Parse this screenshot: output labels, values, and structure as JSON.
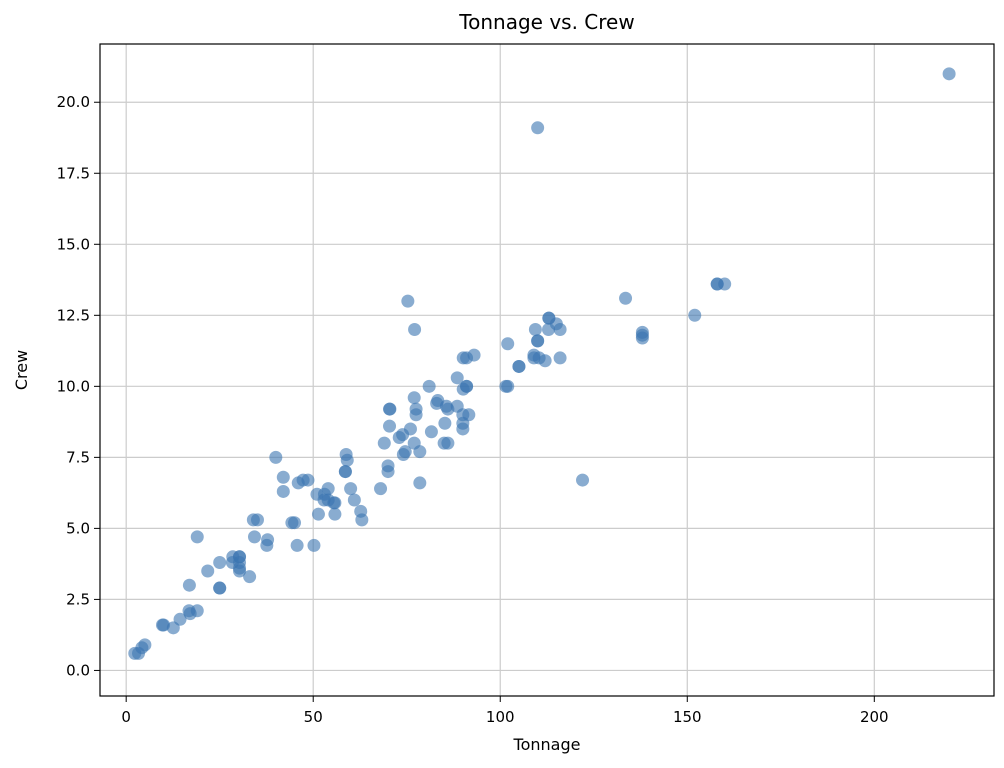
{
  "chart_data": {
    "type": "scatter",
    "title": "Tonnage vs. Crew",
    "xlabel": "Tonnage",
    "ylabel": "Crew",
    "xlim": [
      -7,
      232
    ],
    "ylim": [
      -0.9,
      22.05
    ],
    "xticks": [
      0,
      50,
      100,
      150,
      200
    ],
    "yticks": [
      0.0,
      2.5,
      5.0,
      7.5,
      10.0,
      12.5,
      15.0,
      17.5,
      20.0
    ],
    "ytick_labels": [
      "0.0",
      "2.5",
      "5.0",
      "7.5",
      "10.0",
      "12.5",
      "15.0",
      "17.5",
      "20.0"
    ],
    "grid": true,
    "point_color": "#3a75b0",
    "point_opacity": 0.6,
    "points": [
      [
        2.3,
        0.6
      ],
      [
        3.3,
        0.6
      ],
      [
        4.2,
        0.8
      ],
      [
        5.0,
        0.9
      ],
      [
        9.7,
        1.6
      ],
      [
        10.0,
        1.6
      ],
      [
        12.6,
        1.5
      ],
      [
        14.4,
        1.8
      ],
      [
        16.8,
        2.1
      ],
      [
        17.1,
        2.0
      ],
      [
        16.9,
        3.0
      ],
      [
        19.0,
        2.1
      ],
      [
        19.0,
        4.7
      ],
      [
        21.8,
        3.5
      ],
      [
        25.0,
        2.9
      ],
      [
        25.0,
        2.9
      ],
      [
        25.0,
        3.8
      ],
      [
        28.4,
        3.8
      ],
      [
        28.5,
        4.0
      ],
      [
        30.3,
        3.5
      ],
      [
        30.3,
        3.6
      ],
      [
        30.3,
        3.8
      ],
      [
        30.3,
        4.0
      ],
      [
        30.3,
        4.0
      ],
      [
        33.0,
        3.3
      ],
      [
        34.3,
        4.7
      ],
      [
        34.0,
        5.3
      ],
      [
        35.1,
        5.3
      ],
      [
        37.6,
        4.4
      ],
      [
        37.8,
        4.6
      ],
      [
        40.0,
        7.5
      ],
      [
        42.0,
        6.3
      ],
      [
        42.0,
        6.8
      ],
      [
        44.3,
        5.2
      ],
      [
        45.0,
        5.2
      ],
      [
        45.7,
        4.4
      ],
      [
        46.0,
        6.6
      ],
      [
        47.3,
        6.7
      ],
      [
        48.6,
        6.7
      ],
      [
        50.2,
        4.4
      ],
      [
        51.0,
        6.2
      ],
      [
        51.4,
        5.5
      ],
      [
        52.9,
        6.0
      ],
      [
        53.0,
        6.2
      ],
      [
        54.0,
        6.0
      ],
      [
        54.0,
        6.4
      ],
      [
        55.5,
        5.9
      ],
      [
        55.8,
        5.5
      ],
      [
        55.8,
        5.9
      ],
      [
        58.6,
        7.0
      ],
      [
        58.8,
        7.6
      ],
      [
        58.6,
        7.0
      ],
      [
        59.1,
        7.4
      ],
      [
        60.0,
        6.4
      ],
      [
        61.0,
        6.0
      ],
      [
        62.7,
        5.6
      ],
      [
        63.0,
        5.3
      ],
      [
        68.0,
        6.4
      ],
      [
        69.0,
        8.0
      ],
      [
        70.0,
        7.0
      ],
      [
        70.0,
        7.2
      ],
      [
        70.4,
        8.6
      ],
      [
        70.4,
        9.2
      ],
      [
        70.5,
        9.2
      ],
      [
        73.0,
        8.2
      ],
      [
        73.9,
        8.3
      ],
      [
        74.1,
        7.6
      ],
      [
        74.6,
        7.7
      ],
      [
        75.3,
        13.0
      ],
      [
        76.0,
        8.5
      ],
      [
        77.0,
        9.6
      ],
      [
        77.1,
        12.0
      ],
      [
        77.0,
        8.0
      ],
      [
        77.5,
        9.0
      ],
      [
        77.5,
        9.2
      ],
      [
        78.5,
        6.6
      ],
      [
        78.5,
        7.7
      ],
      [
        81.0,
        10.0
      ],
      [
        81.6,
        8.4
      ],
      [
        83.0,
        9.4
      ],
      [
        83.3,
        9.5
      ],
      [
        85.0,
        8.0
      ],
      [
        85.2,
        8.7
      ],
      [
        85.6,
        9.3
      ],
      [
        86.0,
        8.0
      ],
      [
        86.0,
        9.2
      ],
      [
        88.5,
        9.3
      ],
      [
        88.5,
        10.3
      ],
      [
        90.0,
        8.5
      ],
      [
        90.0,
        8.7
      ],
      [
        90.0,
        9.0
      ],
      [
        90.1,
        9.9
      ],
      [
        90.1,
        11.0
      ],
      [
        91.0,
        10.0
      ],
      [
        91.0,
        11.0
      ],
      [
        91.6,
        9.0
      ],
      [
        91.0,
        10.0
      ],
      [
        93.0,
        11.1
      ],
      [
        101.5,
        10.0
      ],
      [
        102.0,
        10.0
      ],
      [
        102.0,
        11.5
      ],
      [
        105.0,
        10.7
      ],
      [
        105.0,
        10.7
      ],
      [
        109.0,
        11.0
      ],
      [
        109.0,
        11.1
      ],
      [
        109.4,
        12.0
      ],
      [
        110.0,
        11.6
      ],
      [
        110.0,
        11.6
      ],
      [
        110.0,
        19.1
      ],
      [
        110.4,
        11.0
      ],
      [
        112.0,
        10.9
      ],
      [
        112.9,
        12.0
      ],
      [
        113.0,
        12.4
      ],
      [
        113.0,
        12.4
      ],
      [
        115.0,
        12.2
      ],
      [
        116.0,
        11.0
      ],
      [
        116.0,
        12.0
      ],
      [
        122.0,
        6.7
      ],
      [
        133.5,
        13.1
      ],
      [
        138.0,
        11.7
      ],
      [
        138.0,
        11.8
      ],
      [
        138.0,
        11.9
      ],
      [
        152.0,
        12.5
      ],
      [
        158.0,
        13.6
      ],
      [
        158.0,
        13.6
      ],
      [
        160.0,
        13.6
      ],
      [
        220.0,
        21.0
      ]
    ]
  }
}
